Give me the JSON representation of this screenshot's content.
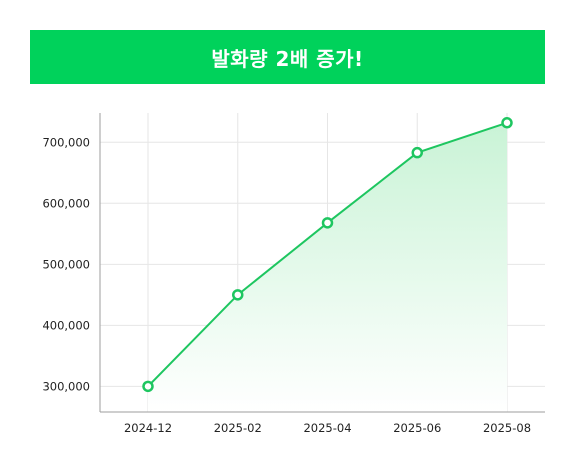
{
  "banner": {
    "title": "발화량 2배 증가!"
  },
  "colors": {
    "accent": "#00d25b",
    "line": "#1ec660",
    "area_top": "#c9f3d6",
    "area_bottom": "#ffffff",
    "grid": "#e6e6e6",
    "axis": "#9e9e9e"
  },
  "chart_data": {
    "type": "area",
    "title": "",
    "xlabel": "",
    "ylabel": "",
    "x": [
      "2024-12",
      "2025-02",
      "2025-04",
      "2025-06",
      "2025-08"
    ],
    "x_tick_labels": [
      "2024-12",
      "2025-02",
      "2025-04",
      "2025-06",
      "2025-08"
    ],
    "series": [
      {
        "values": [
          300000,
          450000,
          568000,
          683000,
          732000
        ]
      }
    ],
    "y_ticks": [
      300000,
      400000,
      500000,
      600000,
      700000
    ],
    "y_tick_labels": [
      "300,000",
      "400,000",
      "500,000",
      "600,000",
      "700,000"
    ],
    "ylim": [
      258000,
      748000
    ],
    "grid": true,
    "legend": "none"
  }
}
